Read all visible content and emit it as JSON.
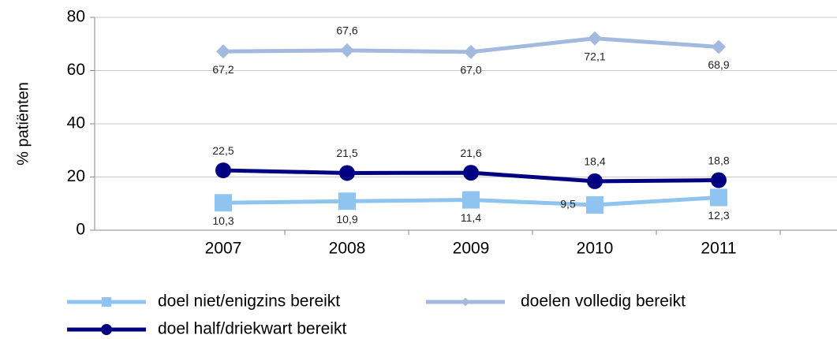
{
  "chart_data": {
    "type": "line",
    "y_label": "% patiënten",
    "categories": [
      "2007",
      "2008",
      "2009",
      "2010",
      "2011"
    ],
    "ylim": [
      0,
      80
    ],
    "yticks": [
      0,
      20,
      40,
      60,
      80
    ],
    "grid": true,
    "series": [
      {
        "name": "doel niet/enigzins bereikt",
        "color": "#8fc3f0",
        "marker": "square",
        "values": [
          10.3,
          10.9,
          11.4,
          9.5,
          12.3
        ],
        "value_labels": [
          "10,3",
          "10,9",
          "11,4",
          "9,5",
          "12,3"
        ]
      },
      {
        "name": "doelen volledig bereikt",
        "color": "#a3b9dd",
        "marker": "diamond",
        "values": [
          67.2,
          67.6,
          67.0,
          72.1,
          68.9
        ],
        "value_labels": [
          "67,2",
          "67,6",
          "67,0",
          "72,1",
          "68,9"
        ]
      },
      {
        "name": "doel half/driekwart bereikt",
        "color": "#000080",
        "marker": "circle",
        "values": [
          22.5,
          21.5,
          21.6,
          18.4,
          18.8
        ],
        "value_labels": [
          "22,5",
          "21,5",
          "21,6",
          "18,4",
          "18,8"
        ]
      }
    ]
  }
}
